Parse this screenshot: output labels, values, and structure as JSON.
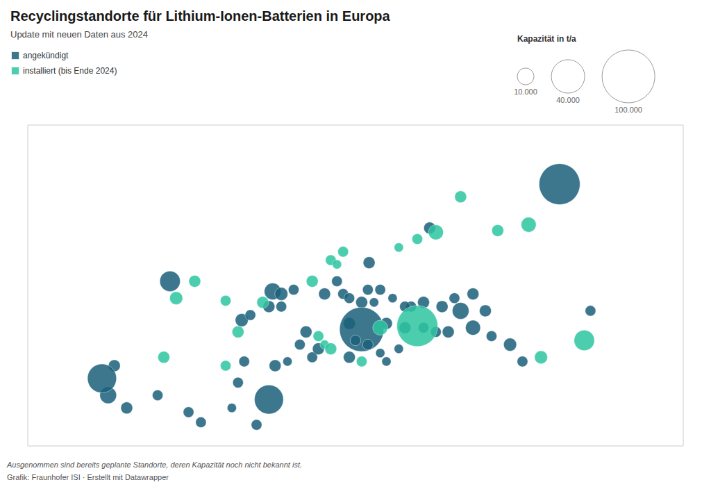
{
  "chart_data": {
    "type": "scatter",
    "title": "Recyclingstandorte für Lithium-Ionen-Batterien in Europa",
    "subtitle": "Update mit neuen Daten aus 2024",
    "footnote": "Ausgenommen sind bereits geplante Standorte, deren Kapazität noch nicht bekannt ist.",
    "source": "Grafik: Fraunhofer ISI · Erstellt mit Datawrapper",
    "xlim": [
      -15,
      38
    ],
    "ylim": [
      34,
      72
    ],
    "tick_labels": false,
    "grid": false,
    "legend": "upper left",
    "marker": "circle",
    "size_legend": {
      "title": "Kapazität in t/a",
      "values": [
        10000,
        40000,
        100000
      ],
      "labels": [
        "10.000",
        "40.000",
        "100.000"
      ]
    },
    "series": [
      {
        "name": "angekündigt",
        "color": "#1a5f7a",
        "x": [
          28.0,
          17.5,
          12.6,
          -3.5,
          2.3,
          3.0,
          4.5,
          5.5,
          4.8,
          5.5,
          6.5,
          9.0,
          10.0,
          10.5,
          11.0,
          12.0,
          12.5,
          13.5,
          13.0,
          14.5,
          11.0,
          12.0,
          14.0,
          15.5,
          18.0,
          19.0,
          17.0,
          21.0,
          22.0,
          20.0,
          21.0,
          19.5,
          18.5,
          17.0,
          16.0,
          15.5,
          22.5,
          24.0,
          25.0,
          30.5,
          7.5,
          7.0,
          11.5,
          12.5,
          8.0,
          8.5,
          11.0,
          13.5,
          14.0,
          15.0,
          -8.5,
          -7.0,
          -4.5,
          -2.0,
          2.0,
          1.5,
          -8.0,
          3.5,
          2.5,
          5.0,
          6.0,
          -9.0,
          4.5,
          -1.0
        ],
        "y": [
          65.0,
          59.8,
          55.7,
          53.5,
          48.9,
          49.5,
          50.5,
          50.5,
          52.3,
          52.0,
          52.5,
          52.0,
          53.5,
          52.0,
          51.5,
          51.0,
          52.5,
          52.5,
          51.0,
          51.5,
          48.5,
          47.8,
          48.5,
          48.0,
          47.5,
          47.5,
          48.0,
          48.0,
          50.0,
          50.0,
          52.0,
          51.5,
          50.5,
          51.0,
          50.5,
          50.5,
          47.0,
          46.0,
          44.0,
          50.0,
          47.5,
          46.0,
          46.5,
          46.0,
          44.5,
          45.5,
          44.5,
          45.0,
          44.0,
          45.5,
          40.0,
          38.5,
          40.0,
          38.0,
          41.5,
          38.5,
          43.5,
          36.5,
          44.0,
          43.5,
          44.0,
          42.0,
          39.5,
          36.8
        ],
        "capacity": [
          60000,
          5000,
          5000,
          15000,
          6000,
          4000,
          5000,
          4000,
          10000,
          6000,
          4000,
          5000,
          4000,
          4000,
          4000,
          5000,
          4000,
          4000,
          3000,
          3000,
          5000,
          70000,
          5000,
          5000,
          4000,
          5000,
          4000,
          8000,
          5000,
          10000,
          5000,
          4000,
          5000,
          5000,
          4000,
          4000,
          4000,
          6000,
          4000,
          4000,
          5000,
          4000,
          4000,
          4000,
          4000,
          5000,
          5000,
          3000,
          3000,
          3000,
          10000,
          5000,
          4000,
          4000,
          4000,
          3000,
          5000,
          4000,
          4000,
          5000,
          3000,
          30000,
          30000,
          4000
        ]
      },
      {
        "name": "installiert (bis Ende 2024)",
        "color": "#2dc6a0",
        "x": [
          25.5,
          23.0,
          18.0,
          16.5,
          20.0,
          15.0,
          10.5,
          9.5,
          10.0,
          -3.0,
          -1.5,
          1.0,
          2.0,
          4.0,
          8.0,
          13.5,
          16.5,
          26.5,
          30.0,
          8.5,
          9.0,
          9.5,
          12.0,
          -4.0,
          1.0
        ],
        "y": [
          60.2,
          59.5,
          59.3,
          58.5,
          63.5,
          57.5,
          57.0,
          56.0,
          55.5,
          51.5,
          53.5,
          51.2,
          47.5,
          51.0,
          53.5,
          48.0,
          48.2,
          44.5,
          46.5,
          47.0,
          46.0,
          45.5,
          44.0,
          44.5,
          43.5
        ],
        "capacity": [
          8000,
          5000,
          8000,
          4000,
          5000,
          3000,
          4000,
          4000,
          3000,
          6000,
          5000,
          4000,
          5000,
          5000,
          5000,
          8000,
          60000,
          6000,
          15000,
          4000,
          3000,
          5000,
          4000,
          5000,
          4000
        ]
      }
    ]
  }
}
